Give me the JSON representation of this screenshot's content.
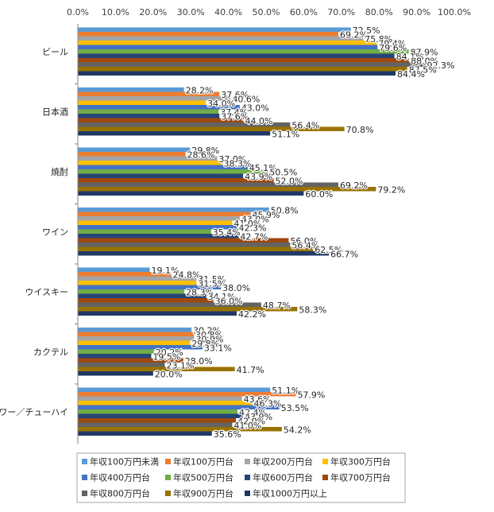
{
  "chart_data": {
    "type": "bar",
    "orientation": "horizontal",
    "title": "",
    "xlabel": "",
    "ylabel": "",
    "xlim": [
      0,
      100
    ],
    "x_tick_labels": [
      "0.0%",
      "10.0%",
      "20.0%",
      "30.0%",
      "40.0%",
      "50.0%",
      "60.0%",
      "70.0%",
      "80.0%",
      "90.0%",
      "100.0%"
    ],
    "x_axis_position": "top",
    "grid": false,
    "legend_position": "bottom",
    "categories": [
      "ビール",
      "日本酒",
      "焼酎",
      "ワイン",
      "ウイスキー",
      "カクテル",
      "サワー／チューハイ"
    ],
    "series": [
      {
        "name": "年収100万円未満",
        "color": "#5B9BD5",
        "values": [
          72.5,
          28.2,
          29.8,
          50.8,
          19.1,
          30.2,
          51.1
        ],
        "labels": [
          "72.5%",
          "28.2%",
          "29.8%",
          "50.8%",
          "19.1%",
          "30.2%",
          "51.1%"
        ]
      },
      {
        "name": "年収100万円台",
        "color": "#ED7D31",
        "values": [
          69.2,
          37.6,
          28.6,
          45.9,
          24.8,
          30.8,
          57.9
        ],
        "labels": [
          "69.2%",
          "37.6%",
          "28.6%",
          "45.9%",
          "24.8%",
          "30.8%",
          "57.9%"
        ]
      },
      {
        "name": "年収200万円台",
        "color": "#A5A5A5",
        "values": [
          75.8,
          40.6,
          37.0,
          43.0,
          31.5,
          30.9,
          43.6
        ],
        "labels": [
          "75.8%",
          "40.6%",
          "37.0%",
          "43.0%",
          "31.5%",
          "30.9%",
          "43.6%"
        ]
      },
      {
        "name": "年収300万円台",
        "color": "#FFC000",
        "values": [
          79.4,
          34.0,
          38.3,
          41.0,
          31.5,
          29.8,
          46.3
        ],
        "labels": [
          "79.4%",
          "34.0%",
          "38.3%",
          "41.0%",
          "31.5%",
          "29.8%",
          "46.3%"
        ]
      },
      {
        "name": "年収400万円台",
        "color": "#4472C4",
        "values": [
          79.6,
          43.0,
          45.1,
          42.3,
          38.0,
          33.1,
          53.5
        ],
        "labels": [
          "79.6%",
          "43.0%",
          "45.1%",
          "42.3%",
          "38.0%",
          "33.1%",
          "53.5%"
        ]
      },
      {
        "name": "年収500万円台",
        "color": "#70AD47",
        "values": [
          87.9,
          37.4,
          50.5,
          35.4,
          28.3,
          20.2,
          42.4
        ],
        "labels": [
          "87.9%",
          "37.4%",
          "50.5%",
          "35.4%",
          "28.3%",
          "20.2%",
          "42.4%"
        ]
      },
      {
        "name": "年収600万円台",
        "color": "#264478",
        "values": [
          84.1,
          37.6,
          43.9,
          42.7,
          34.1,
          19.5,
          43.9
        ],
        "labels": [
          "84.1%",
          "37.6%",
          "43.9%",
          "42.7%",
          "34.1%",
          "19.5%",
          "43.9%"
        ]
      },
      {
        "name": "年収700万円台",
        "color": "#9E480E",
        "values": [
          88.0,
          44.0,
          52.0,
          56.0,
          36.0,
          28.0,
          42.0
        ],
        "labels": [
          "88.0%",
          "44.0%",
          "52.0%",
          "56.0%",
          "36.0%",
          "28.0%",
          "42.0%"
        ]
      },
      {
        "name": "年収800万円台",
        "color": "#636363",
        "values": [
          92.3,
          56.4,
          69.2,
          56.4,
          48.7,
          23.1,
          41.0
        ],
        "labels": [
          "92.3%",
          "56.4%",
          "69.2%",
          "56.4%",
          "48.7%",
          "23.1%",
          "41.0%"
        ]
      },
      {
        "name": "年収900万円台",
        "color": "#997300",
        "values": [
          87.5,
          70.8,
          79.2,
          62.5,
          58.3,
          41.7,
          54.2
        ],
        "labels": [
          "87.5%",
          "70.8%",
          "79.2%",
          "62.5%",
          "58.3%",
          "41.7%",
          "54.2%"
        ]
      },
      {
        "name": "年収1000万円以上",
        "color": "#203864",
        "values": [
          84.4,
          51.1,
          60.0,
          66.7,
          42.2,
          20.0,
          35.6
        ],
        "labels": [
          "84.4%",
          "51.1%",
          "60.0%",
          "66.7%",
          "42.2%",
          "20.0%",
          "35.6%"
        ]
      }
    ]
  }
}
